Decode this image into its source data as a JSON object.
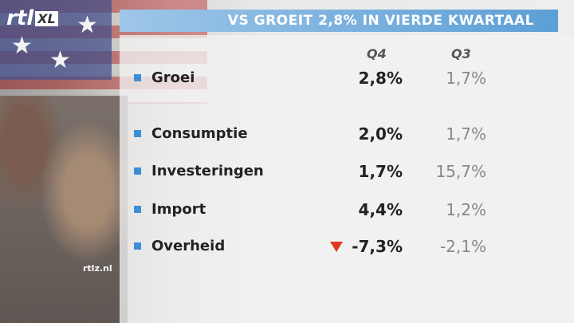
{
  "header": {
    "logo": {
      "main": "rtl",
      "sub": "XL"
    },
    "title": "VS GROEIT 2,8% IN VIERDE KWARTAAL"
  },
  "table": {
    "columns": [
      "Q4",
      "Q3"
    ],
    "rows": [
      [
        "Groei",
        "2,8%",
        "1,7%"
      ],
      [
        "Consumptie",
        "2,0%",
        "1,7%"
      ],
      [
        "Investeringen",
        "1,7%",
        "15,7%"
      ],
      [
        "Import",
        "4,4%",
        "1,2%"
      ],
      [
        "Overheid",
        "-7,3%",
        "-2,1%"
      ]
    ]
  },
  "watermark": "rtlz.nl"
}
